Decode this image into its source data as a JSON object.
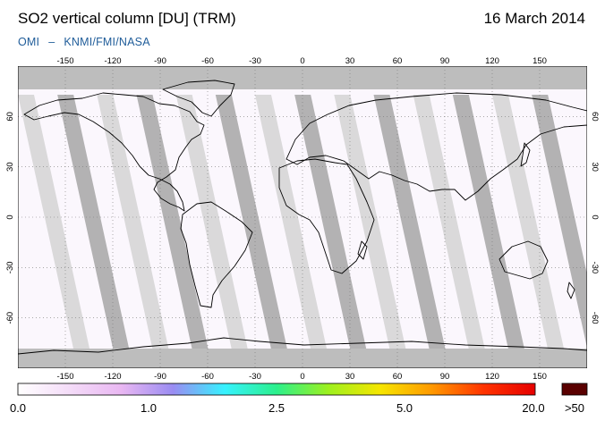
{
  "header": {
    "title": "SO2 vertical column [DU] (TRM)",
    "date": "16 March 2014",
    "credit_left": "OMI",
    "credit_dash": "–",
    "credit_right": "KNMI/FMI/NASA"
  },
  "map": {
    "projection": "equirectangular",
    "lon_range": [
      -180,
      180
    ],
    "lat_range": [
      -90,
      90
    ],
    "lon_ticks": [
      "-150",
      "-120",
      "-90",
      "-60",
      "-30",
      "0",
      "30",
      "60",
      "90",
      "120",
      "150"
    ],
    "lat_ticks": [
      "60",
      "30",
      "0",
      "-30",
      "-60"
    ],
    "grid": "dotted",
    "colors": {
      "no_data_swath": "#d3d3d3",
      "row_anomaly_swath": "#a6a6a6",
      "polar_no_data": "#bdbdbd",
      "background": "#fbf7fd",
      "coastline": "#000000"
    }
  },
  "colorbar": {
    "labels": [
      "0.0",
      "1.0",
      "2.5",
      "5.0",
      "20.0",
      ">50"
    ],
    "stops": [
      "#ffffff",
      "#f4dcf8",
      "#e9b7f2",
      "#9a8cf2",
      "#36f2ff",
      "#2bf08c",
      "#9df01e",
      "#f6e600",
      "#ff9900",
      "#ff3300",
      "#e60000"
    ],
    "overflow_color": "#5a0000"
  }
}
